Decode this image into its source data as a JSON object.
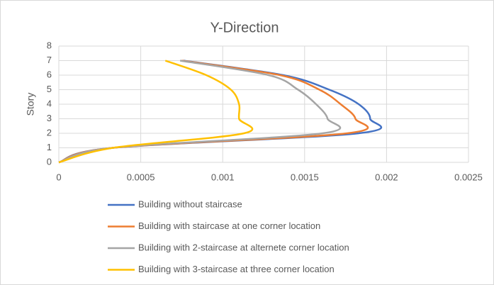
{
  "chart_data": {
    "type": "line",
    "title": "Y-Direction",
    "y_label": "Story",
    "stories": [
      0,
      1,
      2,
      3,
      4,
      5,
      6,
      7
    ],
    "series": [
      {
        "name": "Building without staircase",
        "color": "#4472c4",
        "values": [
          0,
          0.00033,
          0.00183,
          0.0019,
          0.00183,
          0.00165,
          0.00137,
          0.00076
        ]
      },
      {
        "name": "Building with staircase at one corner location",
        "color": "#ed7d31",
        "values": [
          0,
          0.00033,
          0.00176,
          0.00181,
          0.00172,
          0.00159,
          0.00135,
          0.00075
        ]
      },
      {
        "name": "Building with 2-staircase at alternete corner location",
        "color": "#a5a5a5",
        "values": [
          0,
          0.00033,
          0.00161,
          0.00164,
          0.00157,
          0.00146,
          0.00128,
          0.00074
        ]
      },
      {
        "name": "Building with 3-staircase at three corner location",
        "color": "#ffc000",
        "values": [
          0,
          0.00033,
          0.00113,
          0.0011,
          0.0011,
          0.00105,
          0.0009,
          0.00065
        ]
      }
    ],
    "xlim": [
      0,
      0.0025
    ],
    "xticks": [
      0,
      0.0005,
      0.001,
      0.0015,
      0.002,
      0.0025
    ],
    "ylim": [
      0,
      8
    ],
    "yticks": [
      0,
      1,
      2,
      3,
      4,
      5,
      6,
      7,
      8
    ],
    "grid": true
  }
}
